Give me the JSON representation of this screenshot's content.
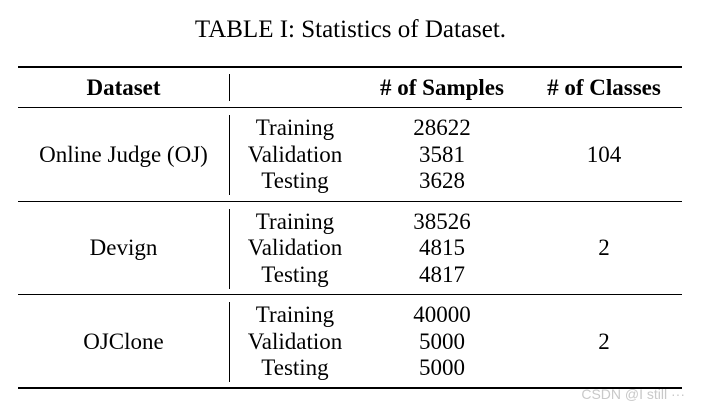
{
  "caption": "TABLE I: Statistics of Dataset.",
  "headers": {
    "dataset": "Dataset",
    "split": "",
    "samples": "# of Samples",
    "classes": "# of Classes"
  },
  "groups": [
    {
      "dataset": "Online Judge (OJ)",
      "classes": "104",
      "rows": [
        {
          "split": "Training",
          "samples": "28622"
        },
        {
          "split": "Validation",
          "samples": "3581"
        },
        {
          "split": "Testing",
          "samples": "3628"
        }
      ]
    },
    {
      "dataset": "Devign",
      "classes": "2",
      "rows": [
        {
          "split": "Training",
          "samples": "38526"
        },
        {
          "split": "Validation",
          "samples": "4815"
        },
        {
          "split": "Testing",
          "samples": "4817"
        }
      ]
    },
    {
      "dataset": "OJClone",
      "classes": "2",
      "rows": [
        {
          "split": "Training",
          "samples": "40000"
        },
        {
          "split": "Validation",
          "samples": "5000"
        },
        {
          "split": "Testing",
          "samples": "5000"
        }
      ]
    }
  ],
  "watermark": "CSDN @I still ···"
}
